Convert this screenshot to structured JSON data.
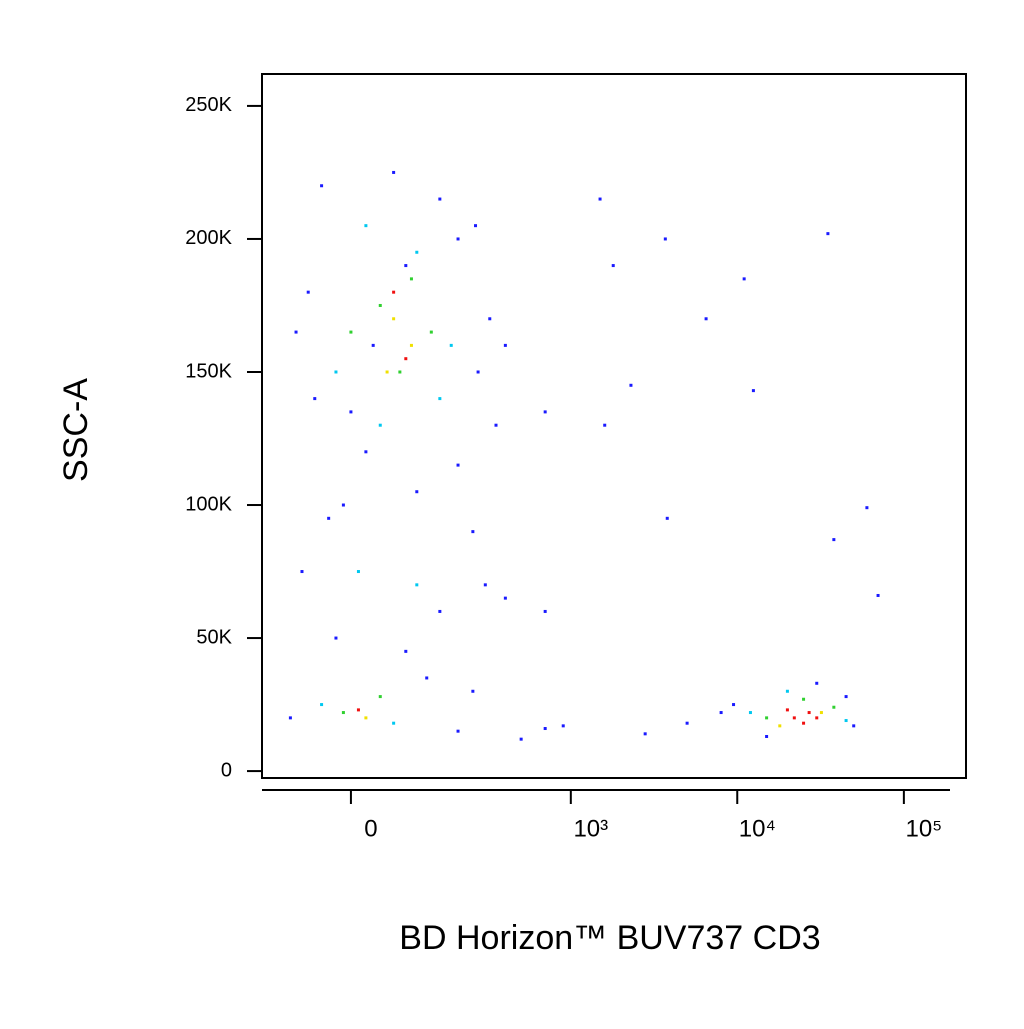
{
  "chart_data": {
    "type": "scatter",
    "x_label": "BD Horizon™ BUV737 CD3",
    "y_label": "SSC-A",
    "xscale": "biexponential",
    "xlim": [
      -150,
      236000
    ],
    "ylim": [
      -2600,
      262000
    ],
    "xticks": [
      {
        "value": 0,
        "label": "0"
      },
      {
        "value": 1000,
        "label": "10³"
      },
      {
        "value": 10000,
        "label": "10⁴"
      },
      {
        "value": 100000,
        "label": "10⁵"
      }
    ],
    "yticks": [
      {
        "value": 0,
        "label": "0"
      },
      {
        "value": 50000,
        "label": "50K"
      },
      {
        "value": 100000,
        "label": "100K"
      },
      {
        "value": 150000,
        "label": "150K"
      },
      {
        "value": 200000,
        "label": "200K"
      },
      {
        "value": 250000,
        "label": "250K"
      }
    ],
    "series": [
      {
        "color": "#1a1aff",
        "x": [
          -40,
          60,
          150,
          260,
          -60,
          320,
          400,
          -50,
          350,
          20,
          200,
          100,
          -30,
          250,
          -70,
          150,
          300,
          400,
          -20,
          80,
          -90,
          200,
          500,
          700,
          1800,
          3700,
          6500,
          11000,
          35000,
          1500,
          2300,
          12500,
          3800,
          60000,
          70000,
          38000,
          700,
          1600,
          700,
          900,
          2800,
          5000,
          8000,
          9500,
          30000,
          45000,
          50000,
          15000,
          250,
          120,
          -10,
          80,
          30,
          0,
          270,
          200,
          -80
        ],
        "y": [
          220000,
          225000,
          215000,
          205000,
          180000,
          170000,
          160000,
          140000,
          130000,
          120000,
          115000,
          105000,
          95000,
          90000,
          75000,
          60000,
          70000,
          65000,
          50000,
          45000,
          20000,
          15000,
          12000,
          16000,
          190000,
          200000,
          170000,
          185000,
          202000,
          215000,
          145000,
          143000,
          95000,
          99000,
          66000,
          87000,
          60000,
          130000,
          135000,
          17000,
          14000,
          18000,
          22000,
          25000,
          33000,
          28000,
          17000,
          13000,
          30000,
          35000,
          100000,
          190000,
          160000,
          135000,
          150000,
          200000,
          165000
        ]
      },
      {
        "color": "#00c8f0",
        "x": [
          20,
          100,
          150,
          -20,
          40,
          10,
          100,
          -40,
          60,
          12000,
          45000,
          20000,
          180
        ],
        "y": [
          205000,
          195000,
          140000,
          150000,
          130000,
          75000,
          70000,
          25000,
          18000,
          22000,
          19000,
          30000,
          160000
        ]
      },
      {
        "color": "#30d030",
        "x": [
          40,
          90,
          70,
          130,
          0,
          -10,
          40,
          15000,
          38000,
          25000
        ],
        "y": [
          175000,
          185000,
          150000,
          165000,
          165000,
          22000,
          28000,
          20000,
          24000,
          27000
        ]
      },
      {
        "color": "#f0e000",
        "x": [
          60,
          90,
          50,
          20,
          18000,
          32000
        ],
        "y": [
          170000,
          160000,
          150000,
          20000,
          17000,
          22000
        ]
      },
      {
        "color": "#f01010",
        "x": [
          60,
          80,
          10,
          22000,
          27000,
          25000,
          30000,
          20000
        ],
        "y": [
          180000,
          155000,
          23000,
          20000,
          22000,
          18000,
          20000,
          23000
        ]
      }
    ]
  }
}
